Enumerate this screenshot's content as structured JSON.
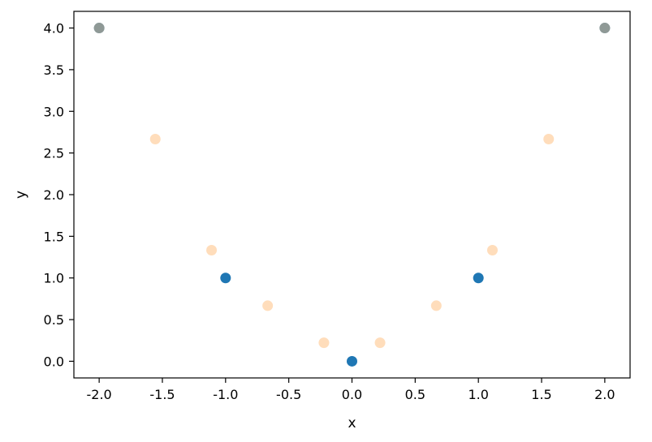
{
  "chart_data": {
    "type": "scatter",
    "title": "",
    "xlabel": "x",
    "ylabel": "y",
    "xlim": [
      -2.2,
      2.2
    ],
    "ylim": [
      -0.2,
      4.2
    ],
    "xticks": [
      "-2.0",
      "-1.5",
      "-1.0",
      "-0.5",
      "0.0",
      "0.5",
      "1.0",
      "1.5",
      "2.0"
    ],
    "yticks": [
      "0.0",
      "0.5",
      "1.0",
      "1.5",
      "2.0",
      "2.5",
      "3.0",
      "3.5",
      "4.0"
    ],
    "grid": false,
    "legend": "none",
    "series": [
      {
        "color": "#1f77b4",
        "x": [
          -2.0,
          -1.0,
          0.0,
          1.0,
          2.0
        ],
        "y": [
          4.0,
          1.0,
          0.0,
          1.0,
          4.0
        ]
      },
      {
        "color": "#ffbb78",
        "alpha": 0.5,
        "x": [
          -2.0,
          -1.556,
          -1.111,
          -0.667,
          -0.222,
          0.222,
          0.667,
          1.111,
          1.556,
          2.0
        ],
        "y": [
          4.0,
          2.667,
          1.333,
          0.667,
          0.222,
          0.222,
          0.667,
          1.333,
          2.667,
          4.0
        ]
      }
    ]
  }
}
